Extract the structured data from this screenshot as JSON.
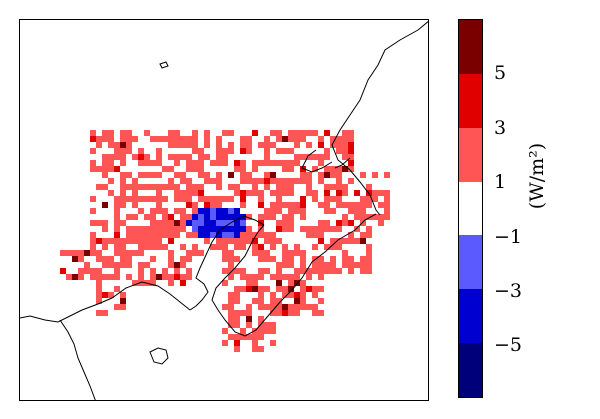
{
  "colorbar": {
    "units": "(W/m²)",
    "ticks": [
      "5",
      "3",
      "1",
      "−1",
      "−3",
      "−5"
    ],
    "bins": [
      {
        "range": "> 5",
        "color": "#7a0000"
      },
      {
        "range": "3 to 5",
        "color": "#e00000"
      },
      {
        "range": "1 to 3",
        "color": "#ff5555"
      },
      {
        "range": "−1 to 1",
        "color": "#ffffff"
      },
      {
        "range": "−3 to −1",
        "color": "#5a5aff"
      },
      {
        "range": "−5 to −3",
        "color": "#0000d0"
      },
      {
        "range": "< −5",
        "color": "#00007a"
      }
    ]
  },
  "map": {
    "coastline_color": "#000000",
    "positive_color": "#ff5555",
    "strong_positive_color": "#e00000",
    "very_strong_color": "#7a0000",
    "negative_color": "#5a5aff",
    "strong_negative_color": "#0000d0"
  }
}
